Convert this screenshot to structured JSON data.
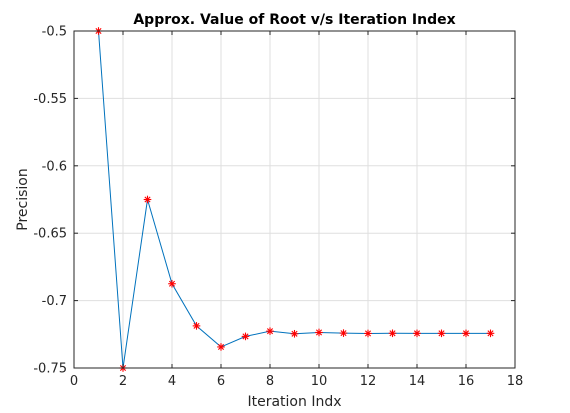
{
  "chart_data": {
    "type": "line",
    "title": "Approx. Value of Root v/s Iteration Index",
    "xlabel": "Iteration Indx",
    "ylabel": "Precision",
    "xlim": [
      0,
      18
    ],
    "ylim": [
      -0.75,
      -0.5
    ],
    "xticks": [
      0,
      2,
      4,
      6,
      8,
      10,
      12,
      14,
      16,
      18
    ],
    "yticks": [
      -0.75,
      -0.7,
      -0.65,
      -0.6,
      -0.55,
      -0.5
    ],
    "ytick_labels": [
      "-0.75",
      "-0.7",
      "-0.65",
      "-0.6",
      "-0.55",
      "-0.5"
    ],
    "grid": true,
    "series": [
      {
        "x": [
          1,
          2,
          3,
          4,
          5,
          6,
          7,
          8,
          9,
          10,
          11,
          12,
          13,
          14,
          15,
          16,
          17
        ],
        "values": [
          -0.5,
          -0.75,
          -0.625,
          -0.6875,
          -0.71875,
          -0.734375,
          -0.7265625,
          -0.72266,
          -0.72461,
          -0.72363,
          -0.72412,
          -0.72437,
          -0.72424,
          -0.7243,
          -0.72427,
          -0.72429,
          -0.72428
        ],
        "line_color": "#0072bd",
        "marker": "asterisk",
        "marker_color": "#ff0000"
      }
    ]
  }
}
